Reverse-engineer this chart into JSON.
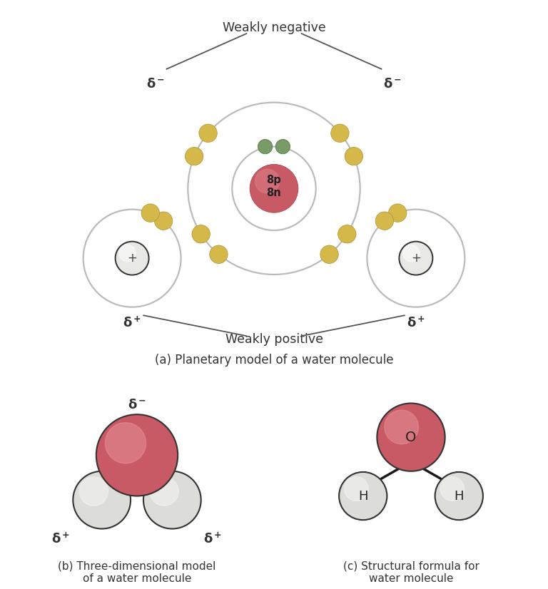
{
  "bg_color": "#ffffff",
  "title_a": "(a) Planetary model of a water molecule",
  "title_b": "(b) Three-dimensional model\nof a water molecule",
  "title_c": "(c) Structural formula for\nwater molecule",
  "nucleus_color": "#c85a65",
  "nucleus_label": "8p\n8n",
  "electron_color_shared": "#7a9a6a",
  "electron_color_outer": "#d4b84a",
  "hydrogen_nucleus_color": "#e8e8e4",
  "text_color": "#333333",
  "orbit_color": "#bbbbbb",
  "label_weakly_neg": "Weakly negative",
  "label_weakly_pos": "Weakly positive",
  "label_plus": "+",
  "label_O": "O",
  "label_H": "H",
  "oxygen_3d_color": "#c85a65",
  "oxygen_3d_highlight": "#e89098",
  "hydrogen_3d_color": "#dcdcd8",
  "hydrogen_3d_highlight": "#f5f5f3"
}
